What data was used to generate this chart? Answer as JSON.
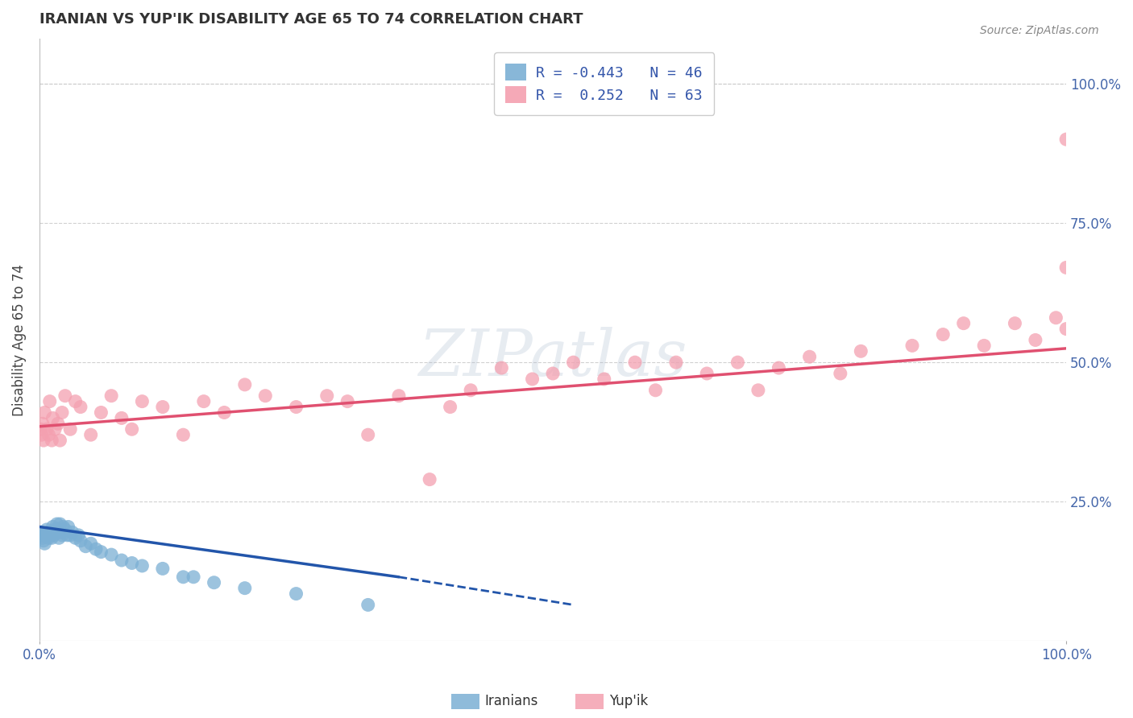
{
  "title": "IRANIAN VS YUP'IK DISABILITY AGE 65 TO 74 CORRELATION CHART",
  "source_text": "Source: ZipAtlas.com",
  "ylabel": "Disability Age 65 to 74",
  "xlim": [
    0.0,
    1.0
  ],
  "ylim": [
    0.0,
    1.08
  ],
  "x_tick_labels": [
    "0.0%",
    "100.0%"
  ],
  "y_ticks": [
    0.25,
    0.5,
    0.75,
    1.0
  ],
  "y_tick_labels": [
    "25.0%",
    "50.0%",
    "75.0%",
    "100.0%"
  ],
  "iranian_color": "#7BAFD4",
  "yupik_color": "#F4A0B0",
  "iranian_R": -0.443,
  "iranian_N": 46,
  "yupik_R": 0.252,
  "yupik_N": 63,
  "trend_line_color_iranian": "#2255AA",
  "trend_line_color_yupik": "#E05070",
  "background_color": "#FFFFFF",
  "grid_color": "#CCCCCC",
  "iranian_x": [
    0.001,
    0.002,
    0.003,
    0.004,
    0.005,
    0.006,
    0.007,
    0.008,
    0.009,
    0.01,
    0.011,
    0.012,
    0.013,
    0.014,
    0.015,
    0.016,
    0.017,
    0.018,
    0.019,
    0.02,
    0.021,
    0.022,
    0.023,
    0.025,
    0.027,
    0.028,
    0.03,
    0.032,
    0.035,
    0.038,
    0.04,
    0.045,
    0.05,
    0.055,
    0.06,
    0.07,
    0.08,
    0.09,
    0.1,
    0.12,
    0.14,
    0.15,
    0.17,
    0.2,
    0.25,
    0.32
  ],
  "iranian_y": [
    0.195,
    0.19,
    0.185,
    0.18,
    0.175,
    0.19,
    0.2,
    0.195,
    0.185,
    0.195,
    0.19,
    0.185,
    0.205,
    0.19,
    0.2,
    0.195,
    0.21,
    0.2,
    0.185,
    0.21,
    0.195,
    0.19,
    0.205,
    0.2,
    0.19,
    0.205,
    0.19,
    0.195,
    0.185,
    0.19,
    0.18,
    0.17,
    0.175,
    0.165,
    0.16,
    0.155,
    0.145,
    0.14,
    0.135,
    0.13,
    0.115,
    0.115,
    0.105,
    0.095,
    0.085,
    0.065
  ],
  "yupik_x": [
    0.001,
    0.002,
    0.003,
    0.004,
    0.005,
    0.007,
    0.009,
    0.01,
    0.012,
    0.013,
    0.015,
    0.018,
    0.02,
    0.022,
    0.025,
    0.03,
    0.035,
    0.04,
    0.05,
    0.06,
    0.07,
    0.08,
    0.09,
    0.1,
    0.12,
    0.14,
    0.16,
    0.18,
    0.2,
    0.22,
    0.25,
    0.28,
    0.3,
    0.32,
    0.35,
    0.38,
    0.4,
    0.42,
    0.45,
    0.48,
    0.5,
    0.52,
    0.55,
    0.58,
    0.6,
    0.62,
    0.65,
    0.68,
    0.7,
    0.72,
    0.75,
    0.78,
    0.8,
    0.85,
    0.88,
    0.9,
    0.92,
    0.95,
    0.97,
    0.99,
    1.0,
    1.0,
    1.0
  ],
  "yupik_y": [
    0.38,
    0.37,
    0.39,
    0.36,
    0.41,
    0.38,
    0.37,
    0.43,
    0.36,
    0.4,
    0.38,
    0.39,
    0.36,
    0.41,
    0.44,
    0.38,
    0.43,
    0.42,
    0.37,
    0.41,
    0.44,
    0.4,
    0.38,
    0.43,
    0.42,
    0.37,
    0.43,
    0.41,
    0.46,
    0.44,
    0.42,
    0.44,
    0.43,
    0.37,
    0.44,
    0.29,
    0.42,
    0.45,
    0.49,
    0.47,
    0.48,
    0.5,
    0.47,
    0.5,
    0.45,
    0.5,
    0.48,
    0.5,
    0.45,
    0.49,
    0.51,
    0.48,
    0.52,
    0.53,
    0.55,
    0.57,
    0.53,
    0.57,
    0.54,
    0.58,
    0.56,
    0.67,
    0.9
  ],
  "yupik_line_x0": 0.0,
  "yupik_line_y0": 0.385,
  "yupik_line_x1": 1.0,
  "yupik_line_y1": 0.525,
  "iranian_line_x0": 0.0,
  "iranian_line_y0": 0.205,
  "iranian_line_x1": 0.35,
  "iranian_line_y1": 0.115,
  "iranian_line_dash_x1": 0.52,
  "iranian_line_dash_y1": 0.065
}
